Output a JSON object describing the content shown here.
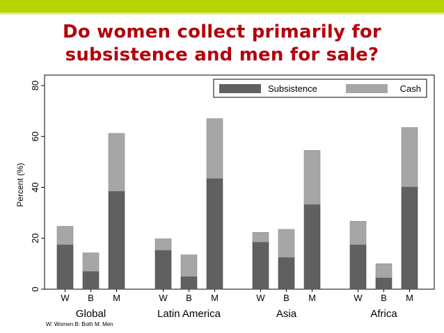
{
  "slide": {
    "title_line1": "Do women collect primarily for",
    "title_line2": "subsistence and men for sale?",
    "footnote": "W: Women B: Both M: Men",
    "accent_color": "#b5d400",
    "title_color": "#b3000c"
  },
  "chart_data": {
    "type": "bar",
    "stacked": true,
    "title": "",
    "xlabel": "",
    "ylabel": "Percent (%)",
    "ylim": [
      0,
      80
    ],
    "yticks": [
      0,
      20,
      40,
      60,
      80
    ],
    "grid": false,
    "legend_position": "top-right",
    "groups": [
      "Global",
      "Latin America",
      "Asia",
      "Africa"
    ],
    "bar_labels": [
      "W",
      "B",
      "M"
    ],
    "series": [
      {
        "name": "Subsistence",
        "color": "#606060",
        "values": [
          17.5,
          7,
          38.5,
          15.3,
          5,
          43.5,
          18.5,
          12.5,
          33.3,
          17.5,
          4.5,
          40.2
        ]
      },
      {
        "name": "Cash",
        "color": "#a6a6a6",
        "values": [
          7.2,
          7.3,
          22.7,
          4.5,
          8.5,
          23.5,
          3.8,
          11,
          21.2,
          9.2,
          5.5,
          23.3
        ]
      }
    ]
  }
}
